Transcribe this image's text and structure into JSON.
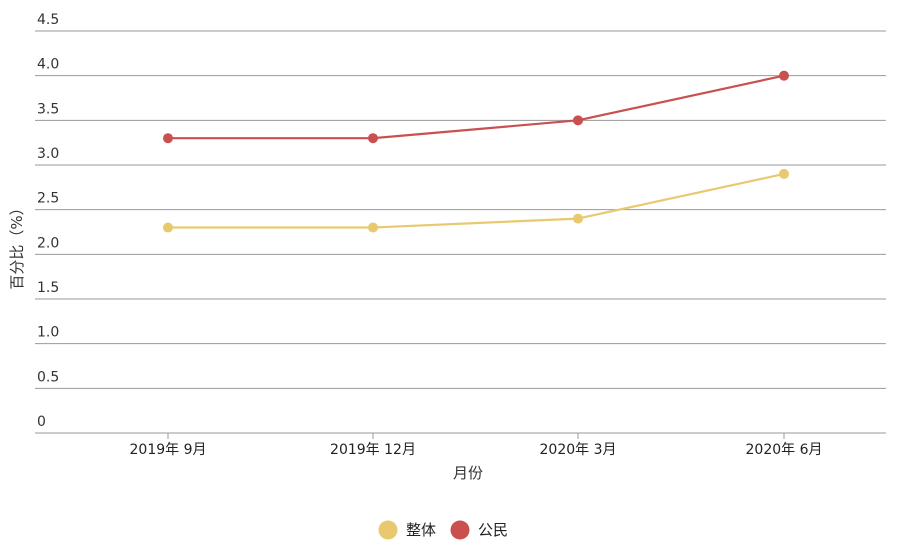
{
  "chart_data": {
    "type": "line",
    "categories": [
      "2019年 9月",
      "2019年 12月",
      "2020年 3月",
      "2020年 6月"
    ],
    "series": [
      {
        "name": "整体",
        "values": [
          2.3,
          2.3,
          2.4,
          2.9
        ],
        "color": "#e8c96f"
      },
      {
        "name": "公民",
        "values": [
          3.3,
          3.3,
          3.5,
          4.0
        ],
        "color": "#c9504f"
      }
    ],
    "xlabel": "月份",
    "ylabel": "百分比（%）",
    "ylim": [
      0,
      4.5
    ],
    "yticks": [
      "0",
      "0.5",
      "1.0",
      "1.5",
      "2.0",
      "2.5",
      "3.0",
      "3.5",
      "4.0",
      "4.5"
    ],
    "grid": true,
    "legend_position": "bottom-center"
  }
}
